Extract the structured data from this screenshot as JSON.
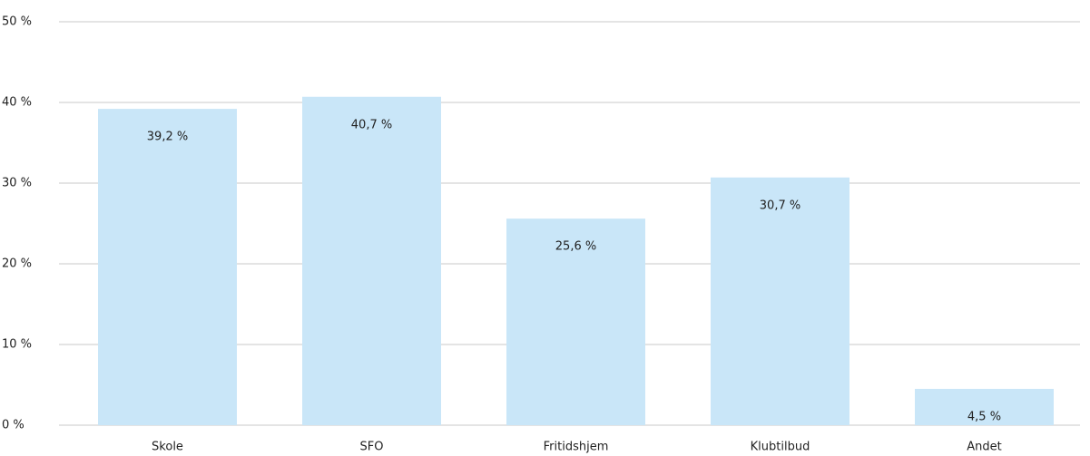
{
  "chart_data": {
    "type": "bar",
    "categories": [
      "Skole",
      "SFO",
      "Fritidshjem",
      "Klubtilbud",
      "Andet"
    ],
    "values": [
      39.2,
      40.7,
      25.6,
      30.7,
      4.5
    ],
    "value_labels": [
      "39,2 %",
      "40,7 %",
      "25,6 %",
      "30,7 %",
      "4,5 %"
    ],
    "color": "#c9e6f8",
    "ylim": [
      0,
      50
    ],
    "yticks": [
      {
        "value": 0,
        "label": "0 %"
      },
      {
        "value": 10,
        "label": "10 %"
      },
      {
        "value": 20,
        "label": "20 %"
      },
      {
        "value": 30,
        "label": "30 %"
      },
      {
        "value": 40,
        "label": "40 %"
      },
      {
        "value": 50,
        "label": "50 %"
      }
    ],
    "grid": true
  }
}
